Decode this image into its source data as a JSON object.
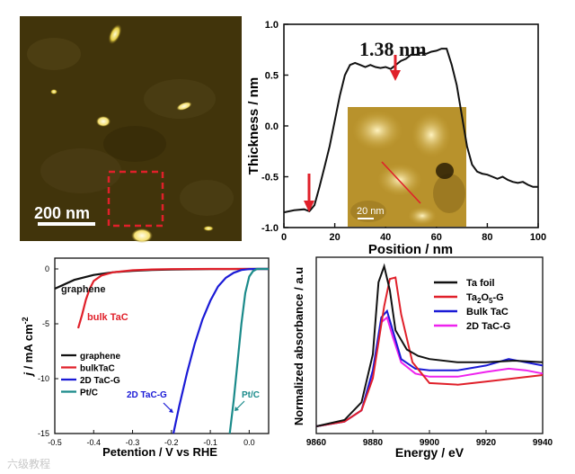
{
  "colors": {
    "black": "#111111",
    "red": "#e0202a",
    "blue": "#1a1ad6",
    "magenta": "#ee22ee",
    "teal": "#1a8a8a",
    "afm_bg": "#3a2e08",
    "afm_spot": "#ffef7a"
  },
  "panel_a": {
    "scale_label": "200 nm",
    "icons": [
      "afm-micrograph",
      "dashed-red-selection-box",
      "white-scale-bar"
    ]
  },
  "panel_b": {
    "ylabel": "Thickness / nm",
    "xlabel": "Position / nm",
    "annotation": "1.38 nm",
    "inset_scale_label": "20 nm",
    "xlim": [
      0,
      100
    ],
    "ylim": [
      -1.0,
      1.0
    ],
    "xticks": [
      "0",
      "20",
      "40",
      "60",
      "80",
      "100"
    ],
    "yticks": [
      "-1.0",
      "-0.5",
      "0.0",
      "0.5",
      "1.0"
    ]
  },
  "panel_c": {
    "ylabel_j": "j",
    "ylabel_unit": " / mA cm",
    "ylabel_sup": "-2",
    "xlabel": "Petention / V vs RHE",
    "xticks": [
      "-0.5",
      "-0.4",
      "-0.3",
      "-0.2",
      "-0.1",
      "0.0"
    ],
    "yticks": [
      "0",
      "-5",
      "-10",
      "-15"
    ],
    "ann_graphene": "graphene",
    "ann_bulk": "bulk TaC",
    "ann_2d": "2D TaC-G",
    "ann_pt": "Pt/C",
    "legend": [
      "graphene",
      "bulkTaC",
      "2D TaC-G",
      "Pt/C"
    ]
  },
  "panel_d": {
    "ylabel": "Normalized absorbance  / a.u",
    "xlabel": "Energy / eV",
    "xticks": [
      "9860",
      "9880",
      "9900",
      "9920",
      "9940"
    ],
    "legend_ta": "Ta foil",
    "legend_ta2o5": {
      "a": "Ta",
      "s1": "2",
      "b": "O",
      "s2": "5",
      "c": "-G"
    },
    "legend_bulk": "Bulk TaC",
    "legend_2d": "2D TaC-G"
  },
  "watermark": "六级教程",
  "chart_data": [
    {
      "type": "line",
      "title": "",
      "xlabel": "Position / nm",
      "ylabel": "Thickness / nm",
      "xlim": [
        0,
        100
      ],
      "ylim": [
        -1.0,
        1.0
      ],
      "annotations": [
        "1.38 nm",
        "20 nm"
      ],
      "series": [
        {
          "name": "height profile",
          "x": [
            0,
            4,
            8,
            10,
            12,
            14,
            16,
            18,
            20,
            22,
            24,
            26,
            28,
            30,
            32,
            34,
            36,
            38,
            40,
            42,
            44,
            46,
            48,
            50,
            52,
            54,
            56,
            58,
            60,
            62,
            64,
            66,
            68,
            70,
            72,
            74,
            76,
            78,
            80,
            82,
            84,
            86,
            88,
            90,
            92,
            94,
            96,
            98,
            100
          ],
          "y": [
            -0.85,
            -0.83,
            -0.82,
            -0.84,
            -0.78,
            -0.6,
            -0.4,
            -0.2,
            0.05,
            0.3,
            0.5,
            0.6,
            0.62,
            0.6,
            0.58,
            0.6,
            0.58,
            0.57,
            0.58,
            0.56,
            0.6,
            0.64,
            0.66,
            0.7,
            0.7,
            0.72,
            0.71,
            0.73,
            0.74,
            0.76,
            0.76,
            0.6,
            0.4,
            0.1,
            -0.2,
            -0.38,
            -0.45,
            -0.47,
            -0.48,
            -0.5,
            -0.52,
            -0.5,
            -0.53,
            -0.55,
            -0.56,
            -0.55,
            -0.58,
            -0.6,
            -0.6
          ]
        }
      ]
    },
    {
      "type": "line",
      "xlabel": "Petention / V vs RHE",
      "ylabel": "j / mA cm-2",
      "xlim": [
        -0.5,
        0.05
      ],
      "ylim": [
        -15,
        0
      ],
      "legend": [
        "graphene",
        "bulkTaC",
        "2D TaC-G",
        "Pt/C"
      ],
      "series": [
        {
          "name": "graphene",
          "x": [
            -0.5,
            -0.45,
            -0.4,
            -0.35,
            -0.3,
            -0.25,
            -0.2,
            -0.1,
            0.0,
            0.05
          ],
          "y": [
            -1.8,
            -1.0,
            -0.55,
            -0.3,
            -0.18,
            -0.1,
            -0.06,
            -0.02,
            0,
            0
          ]
        },
        {
          "name": "bulkTaC",
          "x": [
            -0.44,
            -0.43,
            -0.42,
            -0.41,
            -0.4,
            -0.38,
            -0.35,
            -0.3,
            -0.25,
            -0.2,
            -0.1,
            0.0,
            0.05
          ],
          "y": [
            -5.4,
            -4.2,
            -2.8,
            -1.8,
            -1.1,
            -0.6,
            -0.3,
            -0.12,
            -0.05,
            -0.02,
            0,
            0,
            0
          ]
        },
        {
          "name": "2D TaC-G",
          "x": [
            -0.195,
            -0.18,
            -0.16,
            -0.14,
            -0.12,
            -0.1,
            -0.08,
            -0.06,
            -0.04,
            -0.02,
            0.0,
            0.02,
            0.05
          ],
          "y": [
            -15,
            -12.5,
            -9.5,
            -6.8,
            -4.6,
            -2.9,
            -1.6,
            -0.8,
            -0.35,
            -0.1,
            -0.02,
            0,
            0
          ]
        },
        {
          "name": "Pt/C",
          "x": [
            -0.05,
            -0.04,
            -0.03,
            -0.02,
            -0.01,
            0.0,
            0.01,
            0.02,
            0.05
          ],
          "y": [
            -15,
            -12,
            -8.5,
            -5,
            -2.2,
            -0.7,
            -0.2,
            0,
            0
          ]
        }
      ]
    },
    {
      "type": "line",
      "xlabel": "Energy / eV",
      "ylabel": "Normalized absorbance  / a.u",
      "xlim": [
        9860,
        9940
      ],
      "legend": [
        "Ta foil",
        "Ta2O5-G",
        "Bulk TaC",
        "2D TaC-G"
      ],
      "series": [
        {
          "name": "Ta foil",
          "x": [
            9860,
            9870,
            9876,
            9880,
            9882,
            9884,
            9886,
            9888,
            9892,
            9896,
            9900,
            9910,
            9920,
            9930,
            9940
          ],
          "y": [
            0.0,
            0.04,
            0.15,
            0.45,
            0.9,
            1.0,
            0.85,
            0.6,
            0.48,
            0.44,
            0.42,
            0.4,
            0.4,
            0.41,
            0.4
          ]
        },
        {
          "name": "Ta2O5-G",
          "x": [
            9860,
            9870,
            9876,
            9880,
            9884,
            9886,
            9888,
            9890,
            9894,
            9900,
            9910,
            9920,
            9930,
            9940
          ],
          "y": [
            0.0,
            0.03,
            0.1,
            0.3,
            0.75,
            0.92,
            0.93,
            0.7,
            0.4,
            0.27,
            0.26,
            0.28,
            0.3,
            0.32
          ]
        },
        {
          "name": "Bulk TaC",
          "x": [
            9860,
            9870,
            9876,
            9880,
            9883,
            9885,
            9887,
            9890,
            9895,
            9900,
            9910,
            9920,
            9928,
            9934,
            9940
          ],
          "y": [
            0.0,
            0.03,
            0.1,
            0.35,
            0.68,
            0.72,
            0.6,
            0.42,
            0.36,
            0.35,
            0.35,
            0.38,
            0.42,
            0.4,
            0.38
          ]
        },
        {
          "name": "2D TaC-G",
          "x": [
            9860,
            9870,
            9876,
            9880,
            9883,
            9885,
            9887,
            9890,
            9895,
            9900,
            9910,
            9920,
            9928,
            9934,
            9940
          ],
          "y": [
            0.0,
            0.03,
            0.1,
            0.32,
            0.65,
            0.68,
            0.56,
            0.4,
            0.33,
            0.31,
            0.31,
            0.34,
            0.36,
            0.35,
            0.33
          ]
        }
      ]
    }
  ]
}
